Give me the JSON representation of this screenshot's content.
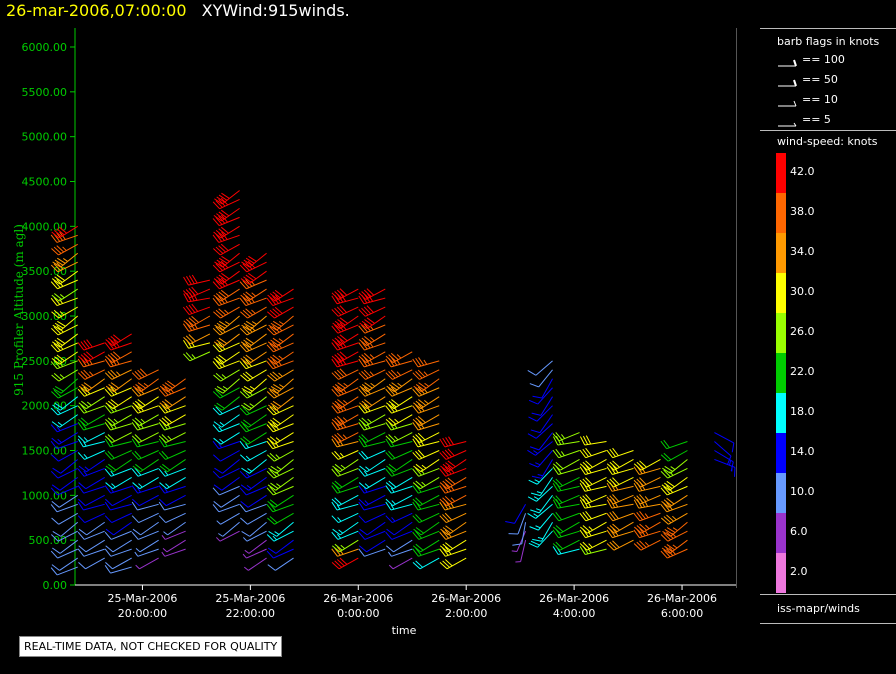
{
  "header": {
    "datetime": "26-mar-2006,07:00:00",
    "product": "XYWind:915winds."
  },
  "footer": {
    "quality_notice": "REAL-TIME DATA, NOT CHECKED FOR QUALITY"
  },
  "legend": {
    "barb_title": "barb flags in knots",
    "barbs": [
      {
        "label": "== 100",
        "knots": 100
      },
      {
        "label": "== 50",
        "knots": 50
      },
      {
        "label": "== 10",
        "knots": 10
      },
      {
        "label": "== 5",
        "knots": 5
      }
    ],
    "colorbar_title": "wind-speed: knots",
    "colorbar": [
      {
        "label": "42.0",
        "color": "#ff0000"
      },
      {
        "label": "38.0",
        "color": "#ff6600"
      },
      {
        "label": "34.0",
        "color": "#ff9900"
      },
      {
        "label": "30.0",
        "color": "#ffff00"
      },
      {
        "label": "26.0",
        "color": "#99ff00"
      },
      {
        "label": "22.0",
        "color": "#00cc00"
      },
      {
        "label": "18.0",
        "color": "#00ffff"
      },
      {
        "label": "14.0",
        "color": "#0000ff"
      },
      {
        "label": "10.0",
        "color": "#6699ff"
      },
      {
        "label": "6.0",
        "color": "#9933cc"
      },
      {
        "label": "2.0",
        "color": "#ee77dd"
      }
    ],
    "source": "iss-mapr/winds"
  },
  "chart_data": {
    "type": "scatter",
    "subtype": "wind-barb time-height plot",
    "title": "XYWind:915winds.",
    "xlabel": "time",
    "ylabel": "915 Profiler Altitude (m agl)",
    "ylim": [
      0,
      6000
    ],
    "yticks": [
      "0.00",
      "500.00",
      "1000.00",
      "1500.00",
      "2000.00",
      "2500.00",
      "3000.00",
      "3500.00",
      "4000.00",
      "4500.00",
      "5000.00",
      "5500.00",
      "6000.00"
    ],
    "xlim_hours": [
      18.75,
      31.0
    ],
    "xticks": [
      {
        "date": "25-Mar-2006",
        "time": "20:00:00",
        "hour": 20
      },
      {
        "date": "25-Mar-2006",
        "time": "22:00:00",
        "hour": 22
      },
      {
        "date": "26-Mar-2006",
        "time": "0:00:00",
        "hour": 24
      },
      {
        "date": "26-Mar-2006",
        "time": "2:00:00",
        "hour": 26
      },
      {
        "date": "26-Mar-2006",
        "time": "4:00:00",
        "hour": 28
      },
      {
        "date": "26-Mar-2006",
        "time": "6:00:00",
        "hour": 30
      }
    ],
    "axis_color": "#00cc00",
    "grid": false,
    "profiles": [
      {
        "hour": 18.8,
        "min": 200,
        "max": 4000,
        "dir": 240,
        "speeds": [
          [
            200,
            12
          ],
          [
            1000,
            12
          ],
          [
            1500,
            14
          ],
          [
            1800,
            16
          ],
          [
            2000,
            18
          ],
          [
            2300,
            24
          ],
          [
            2600,
            30
          ],
          [
            3000,
            30
          ],
          [
            3300,
            28
          ],
          [
            3600,
            34
          ],
          [
            3800,
            38
          ],
          [
            4000,
            42
          ]
        ]
      },
      {
        "hour": 19.3,
        "min": 300,
        "max": 2700,
        "dir": 245,
        "speeds": [
          [
            300,
            10
          ],
          [
            1200,
            14
          ],
          [
            1600,
            18
          ],
          [
            1900,
            22
          ],
          [
            2200,
            30
          ],
          [
            2400,
            38
          ],
          [
            2700,
            42
          ]
        ]
      },
      {
        "hour": 19.8,
        "min": 200,
        "max": 2800,
        "dir": 245,
        "speeds": [
          [
            200,
            10
          ],
          [
            1000,
            14
          ],
          [
            1500,
            22
          ],
          [
            2000,
            28
          ],
          [
            2300,
            34
          ],
          [
            2600,
            40
          ],
          [
            2800,
            42
          ]
        ]
      },
      {
        "hour": 20.3,
        "min": 300,
        "max": 2400,
        "dir": 245,
        "speeds": [
          [
            300,
            8
          ],
          [
            900,
            12
          ],
          [
            1300,
            20
          ],
          [
            1800,
            26
          ],
          [
            2100,
            32
          ],
          [
            2400,
            40
          ]
        ]
      },
      {
        "hour": 20.8,
        "min": 400,
        "max": 2300,
        "dir": 245,
        "speeds": [
          [
            400,
            6
          ],
          [
            800,
            10
          ],
          [
            1200,
            18
          ],
          [
            1600,
            24
          ],
          [
            2000,
            32
          ],
          [
            2300,
            40
          ]
        ]
      },
      {
        "hour": 21.25,
        "min": 2600,
        "max": 3400,
        "dir": 250,
        "speeds": [
          [
            2600,
            26
          ],
          [
            3000,
            40
          ],
          [
            3400,
            42
          ]
        ]
      },
      {
        "hour": 21.8,
        "min": 600,
        "max": 4400,
        "dir": 240,
        "speeds": [
          [
            600,
            8
          ],
          [
            1400,
            14
          ],
          [
            1900,
            18
          ],
          [
            2500,
            30
          ],
          [
            2900,
            34
          ],
          [
            3300,
            40
          ],
          [
            3800,
            42
          ],
          [
            4400,
            42
          ]
        ]
      },
      {
        "hour": 22.3,
        "min": 300,
        "max": 3700,
        "dir": 240,
        "speeds": [
          [
            300,
            6
          ],
          [
            900,
            12
          ],
          [
            1500,
            18
          ],
          [
            2000,
            24
          ],
          [
            2500,
            32
          ],
          [
            3000,
            36
          ],
          [
            3700,
            42
          ]
        ]
      },
      {
        "hour": 22.8,
        "min": 300,
        "max": 3300,
        "dir": 240,
        "speeds": [
          [
            300,
            10
          ],
          [
            800,
            22
          ],
          [
            1300,
            26
          ],
          [
            1800,
            30
          ],
          [
            2400,
            36
          ],
          [
            2800,
            38
          ],
          [
            3300,
            42
          ]
        ]
      },
      {
        "hour": 24.0,
        "min": 300,
        "max": 3300,
        "dir": 245,
        "speeds": [
          [
            300,
            42
          ],
          [
            600,
            18
          ],
          [
            1000,
            20
          ],
          [
            1400,
            26
          ],
          [
            1800,
            40
          ],
          [
            2200,
            38
          ],
          [
            2600,
            42
          ],
          [
            3300,
            42
          ]
        ]
      },
      {
        "hour": 24.5,
        "min": 400,
        "max": 3300,
        "dir": 245,
        "speeds": [
          [
            400,
            12
          ],
          [
            900,
            14
          ],
          [
            1300,
            18
          ],
          [
            1700,
            22
          ],
          [
            2100,
            34
          ],
          [
            2600,
            38
          ],
          [
            3300,
            42
          ]
        ]
      },
      {
        "hour": 25.0,
        "min": 300,
        "max": 2600,
        "dir": 245,
        "speeds": [
          [
            300,
            8
          ],
          [
            800,
            16
          ],
          [
            1200,
            20
          ],
          [
            1600,
            24
          ],
          [
            2000,
            30
          ],
          [
            2300,
            36
          ],
          [
            2600,
            38
          ]
        ]
      },
      {
        "hour": 25.5,
        "min": 300,
        "max": 2500,
        "dir": 245,
        "speeds": [
          [
            300,
            20
          ],
          [
            700,
            22
          ],
          [
            1100,
            24
          ],
          [
            1500,
            30
          ],
          [
            1900,
            34
          ],
          [
            2200,
            36
          ],
          [
            2500,
            38
          ]
        ]
      },
      {
        "hour": 26.0,
        "min": 300,
        "max": 1600,
        "dir": 245,
        "speeds": [
          [
            300,
            30
          ],
          [
            800,
            34
          ],
          [
            1200,
            40
          ],
          [
            1600,
            42
          ]
        ]
      },
      {
        "hour": 27.1,
        "min": 500,
        "max": 900,
        "dir": 200,
        "speeds": [
          [
            500,
            6
          ],
          [
            900,
            14
          ]
        ]
      },
      {
        "hour": 27.6,
        "min": 600,
        "max": 2500,
        "dir": 220,
        "speeds": [
          [
            600,
            20
          ],
          [
            1000,
            18
          ],
          [
            1400,
            16
          ],
          [
            1800,
            14
          ],
          [
            2200,
            14
          ],
          [
            2500,
            10
          ]
        ]
      },
      {
        "hour": 28.1,
        "min": 400,
        "max": 1700,
        "dir": 250,
        "speeds": [
          [
            400,
            20
          ],
          [
            800,
            22
          ],
          [
            1200,
            24
          ],
          [
            1700,
            26
          ]
        ]
      },
      {
        "hour": 28.6,
        "min": 400,
        "max": 1600,
        "dir": 250,
        "speeds": [
          [
            400,
            28
          ],
          [
            800,
            30
          ],
          [
            1200,
            30
          ],
          [
            1600,
            30
          ]
        ]
      },
      {
        "hour": 29.1,
        "min": 500,
        "max": 1500,
        "dir": 250,
        "speeds": [
          [
            500,
            34
          ],
          [
            900,
            34
          ],
          [
            1200,
            32
          ],
          [
            1500,
            30
          ]
        ]
      },
      {
        "hour": 29.6,
        "min": 500,
        "max": 1400,
        "dir": 250,
        "speeds": [
          [
            500,
            38
          ],
          [
            900,
            36
          ],
          [
            1200,
            34
          ],
          [
            1400,
            32
          ]
        ]
      },
      {
        "hour": 30.1,
        "min": 400,
        "max": 1600,
        "dir": 240,
        "speeds": [
          [
            400,
            40
          ],
          [
            800,
            36
          ],
          [
            1200,
            30
          ],
          [
            1600,
            22
          ]
        ]
      },
      {
        "hour": 30.6,
        "min": 1400,
        "max": 1700,
        "dir": 120,
        "speeds": [
          [
            1400,
            16
          ],
          [
            1700,
            14
          ]
        ]
      }
    ]
  }
}
